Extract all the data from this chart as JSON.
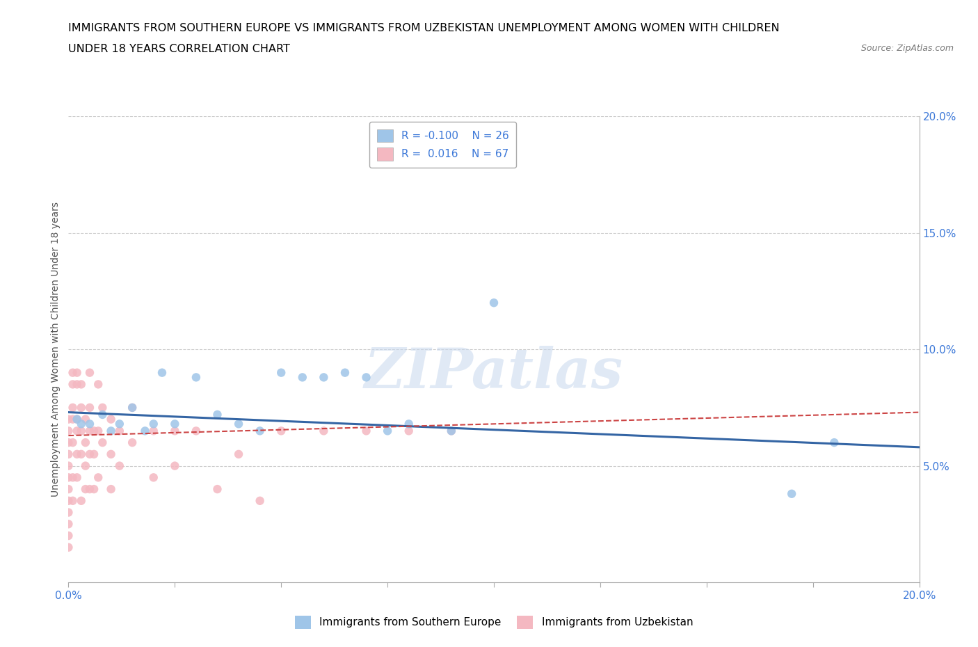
{
  "title_line1": "IMMIGRANTS FROM SOUTHERN EUROPE VS IMMIGRANTS FROM UZBEKISTAN UNEMPLOYMENT AMONG WOMEN WITH CHILDREN",
  "title_line2": "UNDER 18 YEARS CORRELATION CHART",
  "source": "Source: ZipAtlas.com",
  "ylabel": "Unemployment Among Women with Children Under 18 years",
  "watermark": "ZIPatlas",
  "blue_R": "-0.100",
  "blue_N": "26",
  "pink_R": "0.016",
  "pink_N": "67",
  "blue_color": "#9fc5e8",
  "pink_color": "#f4b8c1",
  "blue_line_color": "#3465a4",
  "pink_line_color": "#cc4444",
  "grid_color": "#cccccc",
  "axis_color": "#3c78d8",
  "xlim": [
    0.0,
    0.2
  ],
  "ylim": [
    0.0,
    0.2
  ],
  "blue_x": [
    0.002,
    0.003,
    0.005,
    0.008,
    0.01,
    0.012,
    0.015,
    0.018,
    0.02,
    0.022,
    0.025,
    0.03,
    0.035,
    0.04,
    0.045,
    0.05,
    0.055,
    0.06,
    0.065,
    0.07,
    0.075,
    0.08,
    0.09,
    0.1,
    0.17,
    0.18
  ],
  "blue_y": [
    0.07,
    0.068,
    0.068,
    0.072,
    0.065,
    0.068,
    0.075,
    0.065,
    0.068,
    0.09,
    0.068,
    0.088,
    0.072,
    0.068,
    0.065,
    0.09,
    0.088,
    0.088,
    0.09,
    0.088,
    0.065,
    0.068,
    0.065,
    0.12,
    0.038,
    0.06
  ],
  "pink_x": [
    0.0,
    0.0,
    0.0,
    0.0,
    0.0,
    0.0,
    0.0,
    0.0,
    0.0,
    0.0,
    0.0,
    0.0,
    0.001,
    0.001,
    0.001,
    0.001,
    0.001,
    0.001,
    0.001,
    0.002,
    0.002,
    0.002,
    0.002,
    0.002,
    0.002,
    0.003,
    0.003,
    0.003,
    0.003,
    0.003,
    0.004,
    0.004,
    0.004,
    0.004,
    0.005,
    0.005,
    0.005,
    0.005,
    0.005,
    0.006,
    0.006,
    0.006,
    0.007,
    0.007,
    0.007,
    0.008,
    0.008,
    0.01,
    0.01,
    0.01,
    0.012,
    0.012,
    0.015,
    0.015,
    0.02,
    0.02,
    0.025,
    0.025,
    0.03,
    0.035,
    0.04,
    0.045,
    0.05,
    0.06,
    0.07,
    0.08,
    0.09
  ],
  "pink_y": [
    0.07,
    0.065,
    0.06,
    0.055,
    0.05,
    0.045,
    0.04,
    0.035,
    0.03,
    0.025,
    0.02,
    0.015,
    0.09,
    0.085,
    0.075,
    0.07,
    0.06,
    0.045,
    0.035,
    0.09,
    0.085,
    0.07,
    0.065,
    0.055,
    0.045,
    0.085,
    0.075,
    0.065,
    0.055,
    0.035,
    0.07,
    0.06,
    0.05,
    0.04,
    0.09,
    0.075,
    0.065,
    0.055,
    0.04,
    0.065,
    0.055,
    0.04,
    0.085,
    0.065,
    0.045,
    0.075,
    0.06,
    0.07,
    0.055,
    0.04,
    0.065,
    0.05,
    0.075,
    0.06,
    0.065,
    0.045,
    0.065,
    0.05,
    0.065,
    0.04,
    0.055,
    0.035,
    0.065,
    0.065,
    0.065,
    0.065,
    0.065
  ],
  "blue_trend_x": [
    0.0,
    0.2
  ],
  "blue_trend_y_start": 0.073,
  "blue_trend_y_end": 0.058,
  "pink_trend_x": [
    0.0,
    0.2
  ],
  "pink_trend_y_start": 0.063,
  "pink_trend_y_end": 0.073,
  "xticks": [
    0.0,
    0.025,
    0.05,
    0.075,
    0.1,
    0.125,
    0.15,
    0.175,
    0.2
  ],
  "xtick_labels_outer": [
    "0.0%",
    "",
    "",
    "",
    "",
    "",
    "",
    "",
    "20.0%"
  ],
  "yticks_right": [
    0.05,
    0.1,
    0.15,
    0.2
  ],
  "ytick_labels_right": [
    "5.0%",
    "10.0%",
    "15.0%",
    "20.0%"
  ],
  "hlines": [
    0.05,
    0.1,
    0.15,
    0.2
  ]
}
